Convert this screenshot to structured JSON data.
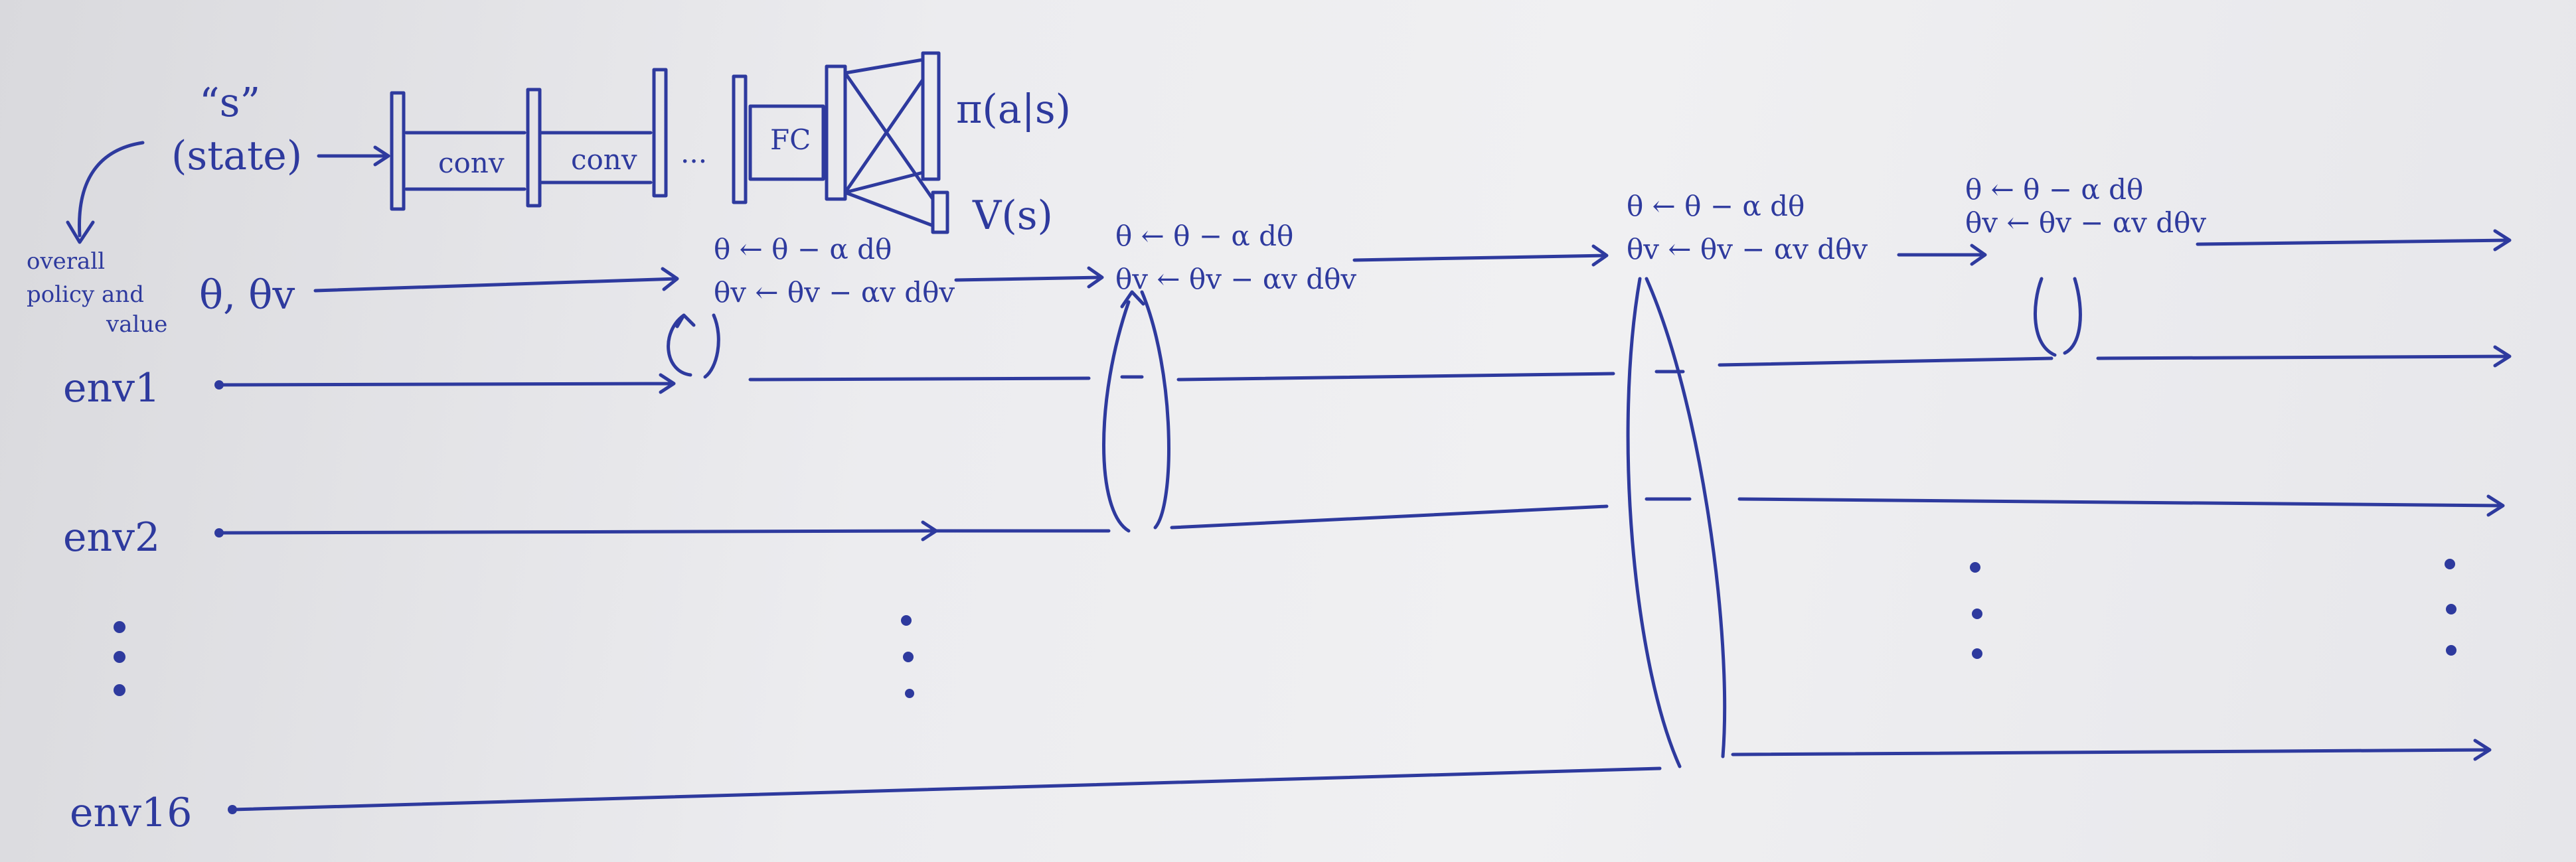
{
  "network": {
    "input_quote": "“s”",
    "input_label": "(state)",
    "conv1": "conv",
    "conv2": "conv",
    "ellipsis": "...",
    "fc": "FC",
    "policy_out": "π(a|s)",
    "value_out": "V(s)"
  },
  "params": {
    "label_line1": "overall",
    "label_line2": "policy and",
    "label_line3": "value",
    "symbols": "θ, θv"
  },
  "updates": {
    "policy_rule": "θ ← θ − α dθ",
    "value_rule": "θv ← θv − αv dθv"
  },
  "envs": {
    "env1": "env1",
    "env2": "env2",
    "env16": "env16"
  },
  "colors": {
    "ink": "#2e3a9e",
    "paper": "#ececef"
  }
}
